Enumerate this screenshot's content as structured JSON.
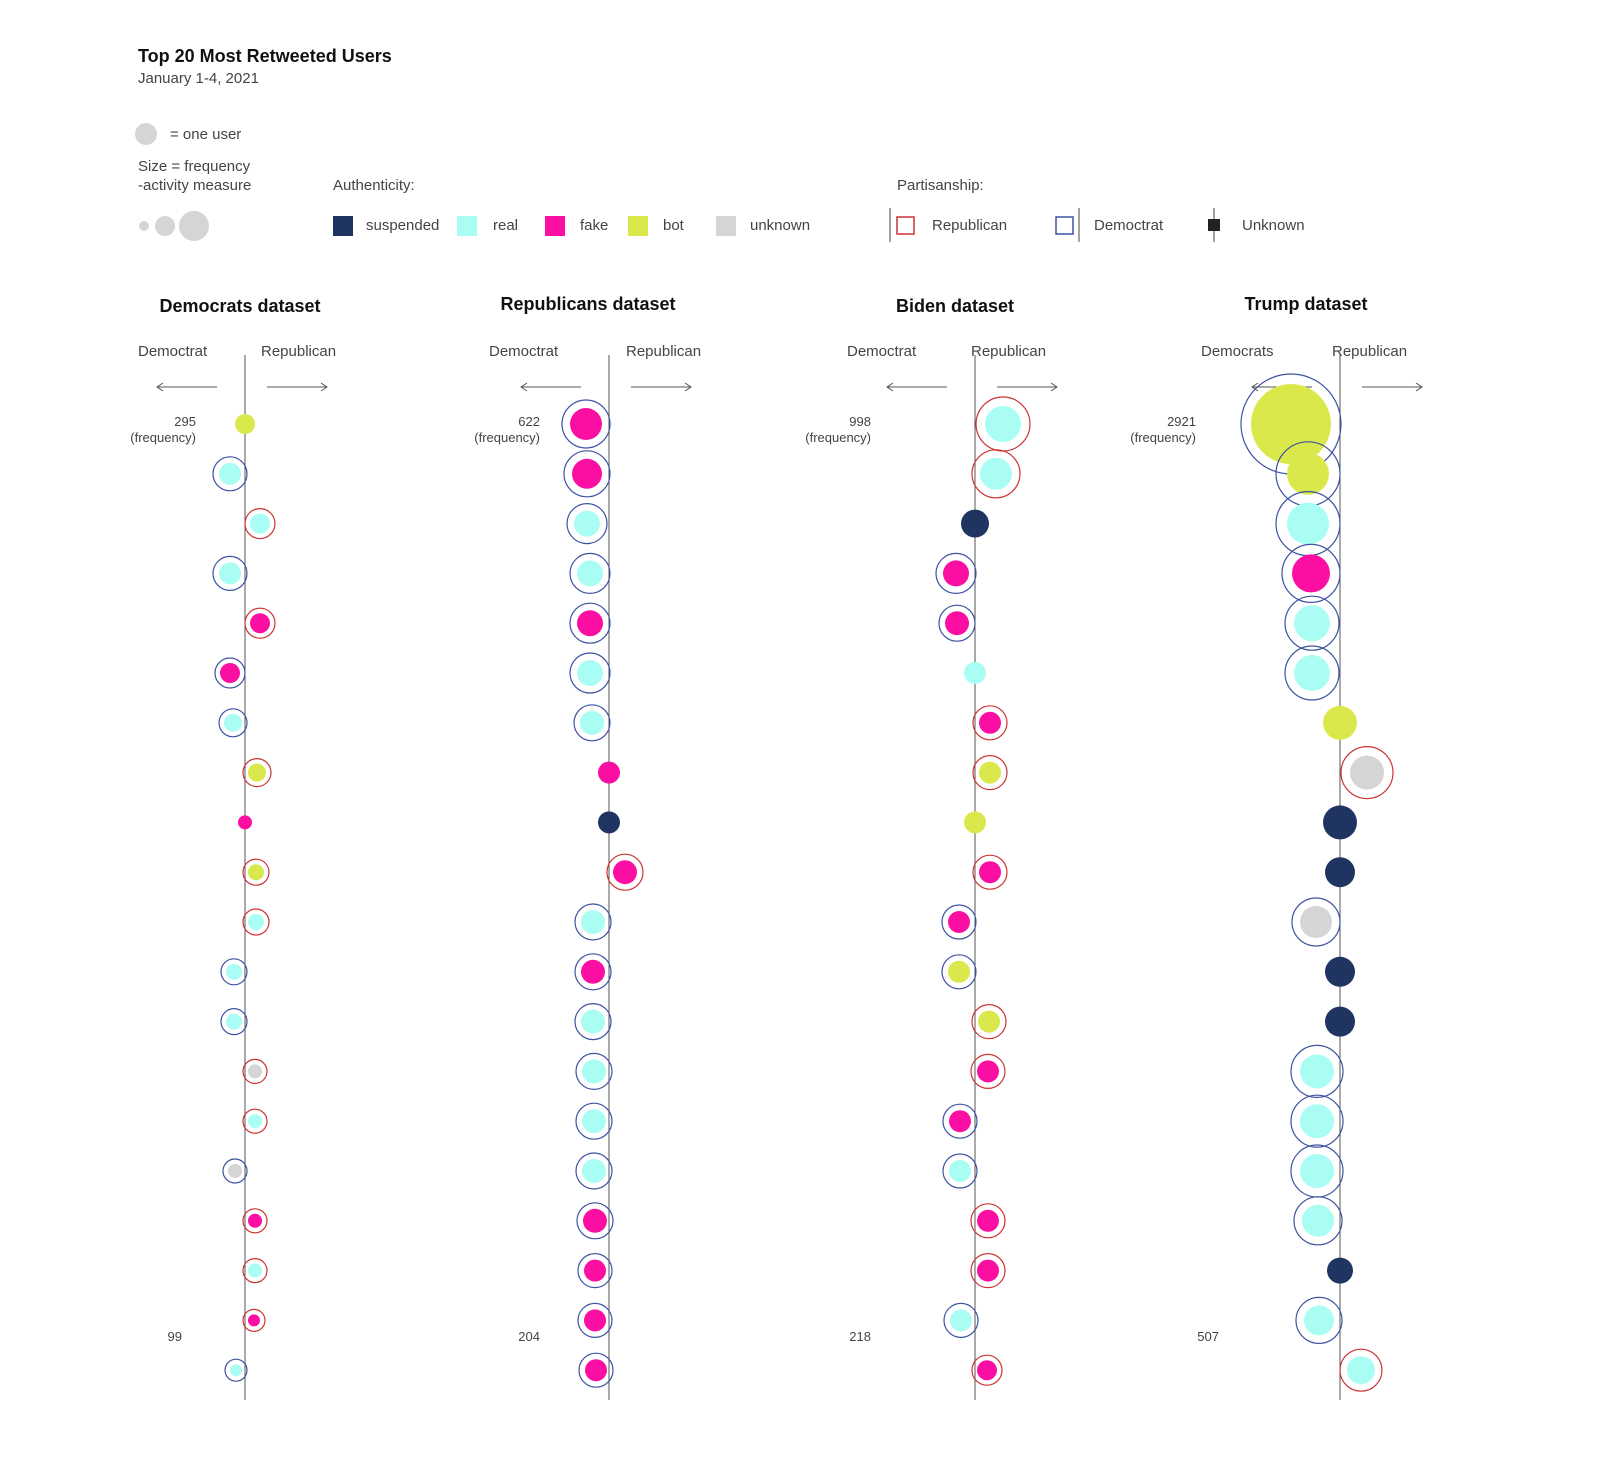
{
  "header": {
    "title": "Top 20 Most Retweeted Users",
    "subtitle": "January 1-4, 2021"
  },
  "legend": {
    "one_user": "= one user",
    "size_line1": "Size = frequency",
    "size_line2": "-activity measure",
    "authenticity_title": "Authenticity:",
    "authenticity": [
      {
        "label": "suspended",
        "color": "#1f3461"
      },
      {
        "label": "real",
        "color": "#a9fdf2"
      },
      {
        "label": "fake",
        "color": "#fb0fa3"
      },
      {
        "label": "bot",
        "color": "#dbe84c"
      },
      {
        "label": "unknown",
        "color": "#d5d5d5"
      }
    ],
    "partisanship_title": "Partisanship:",
    "partisanship": [
      {
        "label": "Republican",
        "color": "#cc3333"
      },
      {
        "label": "Democtrat",
        "color": "#3d52a1"
      },
      {
        "label": "Unknown",
        "color": "#222222"
      }
    ]
  },
  "chart_data": [
    {
      "type": "scatter",
      "title": "Democrats dataset",
      "left_label": "Democtrat",
      "right_label": "Republican",
      "top_value": "295",
      "top_value_note": "(frequency)",
      "bottom_value": "99",
      "users": [
        {
          "rank": 1,
          "auth": "bot",
          "party": "unknown"
        },
        {
          "rank": 2,
          "auth": "real",
          "party": "democrat"
        },
        {
          "rank": 3,
          "auth": "real",
          "party": "republican"
        },
        {
          "rank": 4,
          "auth": "real",
          "party": "democrat"
        },
        {
          "rank": 5,
          "auth": "fake",
          "party": "republican"
        },
        {
          "rank": 6,
          "auth": "fake",
          "party": "democrat"
        },
        {
          "rank": 7,
          "auth": "real",
          "party": "democrat"
        },
        {
          "rank": 8,
          "auth": "bot",
          "party": "republican"
        },
        {
          "rank": 9,
          "auth": "fake",
          "party": "unknown"
        },
        {
          "rank": 10,
          "auth": "bot",
          "party": "republican"
        },
        {
          "rank": 11,
          "auth": "real",
          "party": "republican"
        },
        {
          "rank": 12,
          "auth": "real",
          "party": "democrat"
        },
        {
          "rank": 13,
          "auth": "real",
          "party": "democrat"
        },
        {
          "rank": 14,
          "auth": "unknown",
          "party": "republican"
        },
        {
          "rank": 15,
          "auth": "real",
          "party": "republican"
        },
        {
          "rank": 16,
          "auth": "unknown",
          "party": "democrat"
        },
        {
          "rank": 17,
          "auth": "fake",
          "party": "republican"
        },
        {
          "rank": 18,
          "auth": "real",
          "party": "republican"
        },
        {
          "rank": 19,
          "auth": "fake",
          "party": "republican"
        },
        {
          "rank": 20,
          "auth": "real",
          "party": "democrat"
        }
      ]
    },
    {
      "type": "scatter",
      "title": "Republicans dataset",
      "left_label": "Democtrat",
      "right_label": "Republican",
      "top_value": "622",
      "top_value_note": "(frequency)",
      "bottom_value": "204",
      "users": [
        {
          "rank": 1,
          "auth": "fake",
          "party": "democrat"
        },
        {
          "rank": 2,
          "auth": "fake",
          "party": "democrat"
        },
        {
          "rank": 3,
          "auth": "real",
          "party": "democrat"
        },
        {
          "rank": 4,
          "auth": "real",
          "party": "democrat"
        },
        {
          "rank": 5,
          "auth": "fake",
          "party": "democrat"
        },
        {
          "rank": 6,
          "auth": "real",
          "party": "democrat"
        },
        {
          "rank": 7,
          "auth": "real",
          "party": "democrat"
        },
        {
          "rank": 8,
          "auth": "fake",
          "party": "unknown"
        },
        {
          "rank": 9,
          "auth": "suspended",
          "party": "unknown"
        },
        {
          "rank": 10,
          "auth": "fake",
          "party": "republican"
        },
        {
          "rank": 11,
          "auth": "real",
          "party": "democrat"
        },
        {
          "rank": 12,
          "auth": "fake",
          "party": "democrat"
        },
        {
          "rank": 13,
          "auth": "real",
          "party": "democrat"
        },
        {
          "rank": 14,
          "auth": "real",
          "party": "democrat"
        },
        {
          "rank": 15,
          "auth": "real",
          "party": "democrat"
        },
        {
          "rank": 16,
          "auth": "real",
          "party": "democrat"
        },
        {
          "rank": 17,
          "auth": "fake",
          "party": "democrat"
        },
        {
          "rank": 18,
          "auth": "fake",
          "party": "democrat"
        },
        {
          "rank": 19,
          "auth": "fake",
          "party": "democrat"
        },
        {
          "rank": 20,
          "auth": "fake",
          "party": "democrat"
        }
      ]
    },
    {
      "type": "scatter",
      "title": "Biden dataset",
      "left_label": "Democtrat",
      "right_label": "Republican",
      "top_value": "998",
      "top_value_note": "(frequency)",
      "bottom_value": "218",
      "users": [
        {
          "rank": 1,
          "auth": "real",
          "party": "republican"
        },
        {
          "rank": 2,
          "auth": "real",
          "party": "republican"
        },
        {
          "rank": 3,
          "auth": "suspended",
          "party": "unknown"
        },
        {
          "rank": 4,
          "auth": "fake",
          "party": "democrat"
        },
        {
          "rank": 5,
          "auth": "fake",
          "party": "democrat"
        },
        {
          "rank": 6,
          "auth": "real",
          "party": "unknown"
        },
        {
          "rank": 7,
          "auth": "fake",
          "party": "republican"
        },
        {
          "rank": 8,
          "auth": "bot",
          "party": "republican"
        },
        {
          "rank": 9,
          "auth": "bot",
          "party": "unknown"
        },
        {
          "rank": 10,
          "auth": "fake",
          "party": "republican"
        },
        {
          "rank": 11,
          "auth": "fake",
          "party": "democrat"
        },
        {
          "rank": 12,
          "auth": "bot",
          "party": "democrat"
        },
        {
          "rank": 13,
          "auth": "bot",
          "party": "republican"
        },
        {
          "rank": 14,
          "auth": "fake",
          "party": "republican"
        },
        {
          "rank": 15,
          "auth": "fake",
          "party": "democrat"
        },
        {
          "rank": 16,
          "auth": "real",
          "party": "democrat"
        },
        {
          "rank": 17,
          "auth": "fake",
          "party": "republican"
        },
        {
          "rank": 18,
          "auth": "fake",
          "party": "republican"
        },
        {
          "rank": 19,
          "auth": "real",
          "party": "democrat"
        },
        {
          "rank": 20,
          "auth": "fake",
          "party": "republican"
        }
      ]
    },
    {
      "type": "scatter",
      "title": "Trump dataset",
      "left_label": "Democrats",
      "right_label": "Republican",
      "top_value": "2921",
      "top_value_note": "(frequency)",
      "bottom_value": "507",
      "users": [
        {
          "rank": 1,
          "auth": "bot",
          "party": "democrat"
        },
        {
          "rank": 2,
          "auth": "bot",
          "party": "democrat"
        },
        {
          "rank": 3,
          "auth": "real",
          "party": "democrat"
        },
        {
          "rank": 4,
          "auth": "fake",
          "party": "democrat"
        },
        {
          "rank": 5,
          "auth": "real",
          "party": "democrat"
        },
        {
          "rank": 6,
          "auth": "real",
          "party": "democrat"
        },
        {
          "rank": 7,
          "auth": "bot",
          "party": "unknown"
        },
        {
          "rank": 8,
          "auth": "unknown",
          "party": "republican"
        },
        {
          "rank": 9,
          "auth": "suspended",
          "party": "unknown"
        },
        {
          "rank": 10,
          "auth": "suspended",
          "party": "unknown"
        },
        {
          "rank": 11,
          "auth": "unknown",
          "party": "democrat"
        },
        {
          "rank": 12,
          "auth": "suspended",
          "party": "unknown"
        },
        {
          "rank": 13,
          "auth": "suspended",
          "party": "unknown"
        },
        {
          "rank": 14,
          "auth": "real",
          "party": "democrat"
        },
        {
          "rank": 15,
          "auth": "real",
          "party": "democrat"
        },
        {
          "rank": 16,
          "auth": "real",
          "party": "democrat"
        },
        {
          "rank": 17,
          "auth": "real",
          "party": "democrat"
        },
        {
          "rank": 18,
          "auth": "suspended",
          "party": "unknown"
        },
        {
          "rank": 19,
          "auth": "real",
          "party": "democrat"
        },
        {
          "rank": 20,
          "auth": "real",
          "party": "republican"
        }
      ]
    }
  ]
}
